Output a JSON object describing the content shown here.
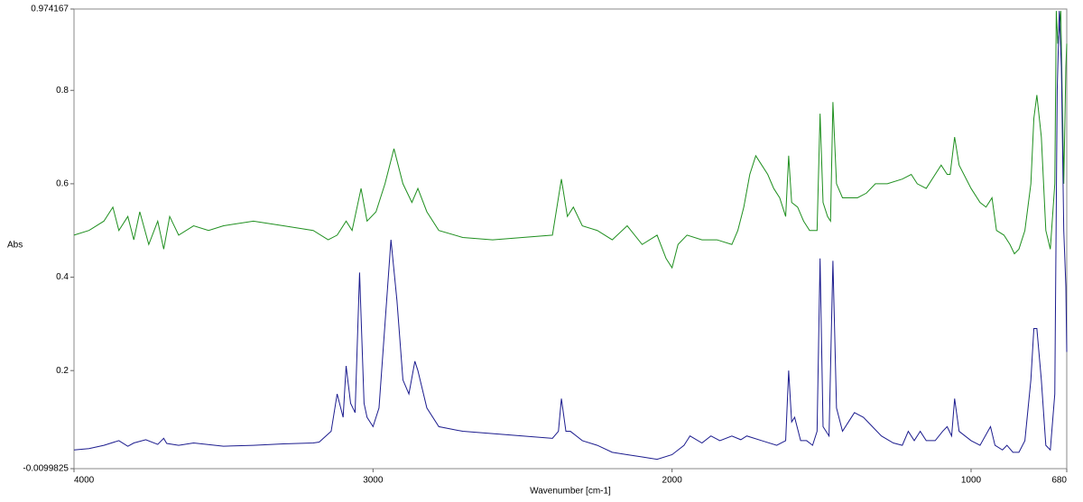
{
  "chart_data": {
    "type": "line",
    "ylabel": "Abs",
    "xlabel": "Wavenumber [cm-1]",
    "xlim": [
      4000,
      680
    ],
    "ylim": [
      -0.0099825,
      0.974167
    ],
    "xticks": [
      4000,
      3000,
      2000,
      1000,
      680
    ],
    "yticks": [
      -0.0099825,
      0.2,
      0.4,
      0.6,
      0.8,
      0.974167
    ],
    "series": [
      {
        "color": "#1f8f1f",
        "x": [
          4000,
          3950,
          3900,
          3870,
          3850,
          3820,
          3800,
          3780,
          3750,
          3720,
          3700,
          3680,
          3650,
          3600,
          3550,
          3500,
          3400,
          3300,
          3200,
          3150,
          3120,
          3090,
          3070,
          3040,
          3020,
          2990,
          2960,
          2930,
          2900,
          2870,
          2850,
          2820,
          2780,
          2700,
          2600,
          2500,
          2400,
          2370,
          2350,
          2330,
          2300,
          2250,
          2200,
          2150,
          2100,
          2050,
          2020,
          2000,
          1980,
          1950,
          1900,
          1850,
          1800,
          1780,
          1760,
          1740,
          1720,
          1700,
          1680,
          1660,
          1640,
          1620,
          1610,
          1600,
          1580,
          1560,
          1540,
          1515,
          1505,
          1495,
          1480,
          1470,
          1462,
          1450,
          1430,
          1400,
          1380,
          1350,
          1320,
          1280,
          1230,
          1200,
          1180,
          1150,
          1120,
          1100,
          1080,
          1070,
          1055,
          1040,
          1000,
          970,
          950,
          930,
          915,
          890,
          870,
          855,
          840,
          820,
          800,
          790,
          780,
          765,
          750,
          735,
          720,
          715,
          710,
          700,
          690,
          683,
          680
        ],
        "values": [
          0.49,
          0.5,
          0.52,
          0.55,
          0.5,
          0.53,
          0.48,
          0.54,
          0.47,
          0.52,
          0.46,
          0.53,
          0.49,
          0.51,
          0.5,
          0.51,
          0.52,
          0.51,
          0.5,
          0.48,
          0.49,
          0.52,
          0.5,
          0.59,
          0.52,
          0.54,
          0.6,
          0.675,
          0.6,
          0.56,
          0.59,
          0.54,
          0.5,
          0.485,
          0.48,
          0.485,
          0.49,
          0.61,
          0.53,
          0.55,
          0.51,
          0.5,
          0.48,
          0.51,
          0.47,
          0.49,
          0.44,
          0.42,
          0.47,
          0.49,
          0.48,
          0.48,
          0.47,
          0.5,
          0.55,
          0.62,
          0.66,
          0.64,
          0.62,
          0.59,
          0.57,
          0.53,
          0.66,
          0.56,
          0.55,
          0.52,
          0.5,
          0.5,
          0.75,
          0.56,
          0.53,
          0.52,
          0.775,
          0.6,
          0.57,
          0.57,
          0.57,
          0.58,
          0.6,
          0.6,
          0.61,
          0.62,
          0.6,
          0.59,
          0.62,
          0.64,
          0.62,
          0.62,
          0.7,
          0.64,
          0.59,
          0.56,
          0.55,
          0.57,
          0.5,
          0.49,
          0.47,
          0.45,
          0.46,
          0.5,
          0.6,
          0.74,
          0.79,
          0.7,
          0.5,
          0.46,
          0.6,
          0.97,
          0.9,
          0.97,
          0.6,
          0.85,
          0.9
        ]
      },
      {
        "color": "#1c1c8e",
        "x": [
          4000,
          3950,
          3900,
          3850,
          3820,
          3800,
          3760,
          3720,
          3700,
          3690,
          3650,
          3600,
          3500,
          3400,
          3300,
          3200,
          3180,
          3140,
          3120,
          3100,
          3090,
          3075,
          3060,
          3045,
          3030,
          3020,
          3000,
          2980,
          2960,
          2940,
          2920,
          2900,
          2880,
          2860,
          2850,
          2820,
          2780,
          2700,
          2600,
          2500,
          2400,
          2380,
          2370,
          2355,
          2340,
          2300,
          2250,
          2200,
          2150,
          2100,
          2050,
          2000,
          1960,
          1940,
          1900,
          1870,
          1840,
          1800,
          1770,
          1750,
          1700,
          1650,
          1620,
          1610,
          1600,
          1590,
          1570,
          1550,
          1530,
          1515,
          1505,
          1495,
          1475,
          1462,
          1450,
          1430,
          1410,
          1390,
          1360,
          1330,
          1300,
          1260,
          1230,
          1210,
          1190,
          1170,
          1150,
          1120,
          1095,
          1080,
          1065,
          1055,
          1040,
          1000,
          970,
          935,
          920,
          895,
          880,
          860,
          840,
          820,
          800,
          790,
          780,
          765,
          750,
          735,
          720,
          712,
          705,
          698,
          690,
          683,
          680
        ],
        "values": [
          0.03,
          0.033,
          0.04,
          0.05,
          0.038,
          0.045,
          0.052,
          0.042,
          0.055,
          0.044,
          0.04,
          0.045,
          0.038,
          0.04,
          0.043,
          0.045,
          0.047,
          0.07,
          0.15,
          0.1,
          0.21,
          0.13,
          0.11,
          0.41,
          0.13,
          0.1,
          0.08,
          0.12,
          0.3,
          0.48,
          0.35,
          0.18,
          0.15,
          0.22,
          0.2,
          0.12,
          0.08,
          0.07,
          0.065,
          0.06,
          0.055,
          0.07,
          0.14,
          0.07,
          0.07,
          0.05,
          0.04,
          0.025,
          0.02,
          0.015,
          0.01,
          0.02,
          0.04,
          0.06,
          0.045,
          0.06,
          0.05,
          0.06,
          0.052,
          0.06,
          0.05,
          0.04,
          0.05,
          0.2,
          0.09,
          0.1,
          0.05,
          0.05,
          0.04,
          0.07,
          0.44,
          0.08,
          0.06,
          0.435,
          0.12,
          0.07,
          0.09,
          0.11,
          0.1,
          0.08,
          0.06,
          0.045,
          0.04,
          0.07,
          0.05,
          0.07,
          0.05,
          0.05,
          0.07,
          0.08,
          0.06,
          0.14,
          0.07,
          0.05,
          0.04,
          0.08,
          0.04,
          0.03,
          0.04,
          0.025,
          0.025,
          0.05,
          0.18,
          0.29,
          0.29,
          0.18,
          0.04,
          0.03,
          0.15,
          0.8,
          0.97,
          0.85,
          0.5,
          0.38,
          0.24
        ]
      }
    ]
  }
}
